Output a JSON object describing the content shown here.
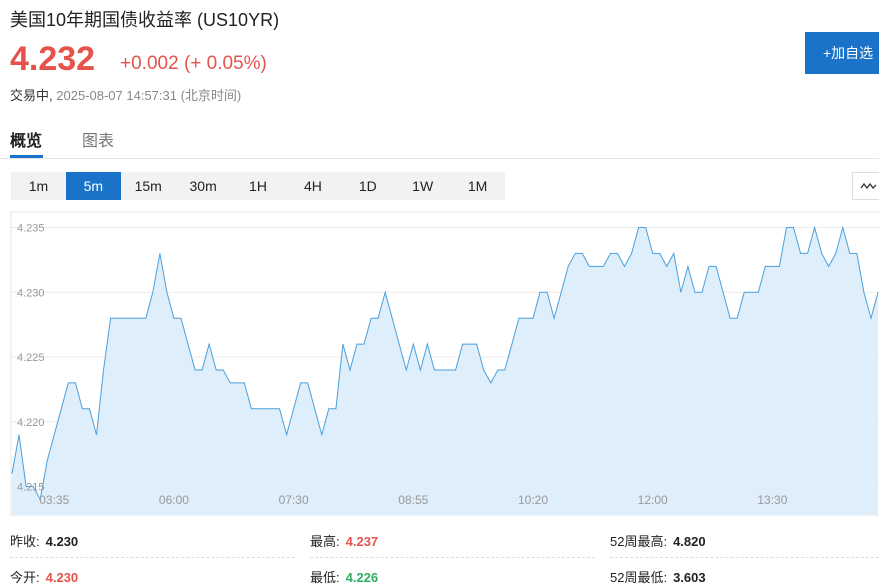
{
  "header": {
    "title": "美国10年期国债收益率",
    "symbol": "(US10YR)",
    "price": "4.232",
    "change": "+0.002",
    "change_pct": "(+ 0.05%)",
    "status": "交易中,",
    "timestamp": "2025-08-07 14:57:31",
    "timezone": "(北京时间)"
  },
  "watch_button": "+加自选",
  "tabs": [
    "概览",
    "图表"
  ],
  "intervals": [
    "1m",
    "5m",
    "15m",
    "30m",
    "1H",
    "4H",
    "1D",
    "1W",
    "1M"
  ],
  "chart_data": {
    "type": "area",
    "color": "#4a9fdc",
    "fill": "#dfeefb",
    "categories": [
      null,
      null,
      null,
      null,
      null,
      null,
      "03:35",
      null,
      null,
      null,
      null,
      null,
      null,
      null,
      null,
      null,
      null,
      null,
      null,
      null,
      null,
      null,
      null,
      "06:00",
      null,
      null,
      null,
      null,
      null,
      null,
      null,
      null,
      null,
      null,
      null,
      null,
      null,
      null,
      null,
      null,
      "07:30",
      null,
      null,
      null,
      null,
      null,
      null,
      null,
      null,
      null,
      null,
      null,
      null,
      null,
      null,
      null,
      null,
      "08:55",
      null,
      null,
      null,
      null,
      null,
      null,
      null,
      null,
      null,
      null,
      null,
      null,
      null,
      null,
      null,
      null,
      "10:20",
      null,
      null,
      null,
      null,
      null,
      null,
      null,
      null,
      null,
      null,
      null,
      null,
      null,
      null,
      null,
      null,
      "12:00",
      null,
      null,
      null,
      null,
      null,
      null,
      null,
      null,
      null,
      null,
      null,
      null,
      null,
      null,
      null,
      null,
      "13:30",
      null,
      null,
      null,
      null,
      null,
      null,
      null,
      null,
      null,
      null,
      null,
      null,
      null,
      null,
      null
    ],
    "values": [
      4.216,
      4.219,
      4.215,
      4.215,
      4.214,
      4.217,
      4.219,
      4.221,
      4.223,
      4.223,
      4.221,
      4.221,
      4.219,
      4.224,
      4.228,
      4.228,
      4.228,
      4.228,
      4.228,
      4.228,
      4.23,
      4.233,
      4.23,
      4.228,
      4.228,
      4.226,
      4.224,
      4.224,
      4.226,
      4.224,
      4.224,
      4.223,
      4.223,
      4.223,
      4.221,
      4.221,
      4.221,
      4.221,
      4.221,
      4.219,
      4.221,
      4.223,
      4.223,
      4.221,
      4.219,
      4.221,
      4.221,
      4.226,
      4.224,
      4.226,
      4.226,
      4.228,
      4.228,
      4.23,
      4.228,
      4.226,
      4.224,
      4.226,
      4.224,
      4.226,
      4.224,
      4.224,
      4.224,
      4.224,
      4.226,
      4.226,
      4.226,
      4.224,
      4.223,
      4.224,
      4.224,
      4.226,
      4.228,
      4.228,
      4.228,
      4.23,
      4.23,
      4.228,
      4.23,
      4.232,
      4.233,
      4.233,
      4.232,
      4.232,
      4.232,
      4.233,
      4.233,
      4.232,
      4.233,
      4.235,
      4.235,
      4.233,
      4.233,
      4.232,
      4.233,
      4.23,
      4.232,
      4.23,
      4.23,
      4.232,
      4.232,
      4.23,
      4.228,
      4.228,
      4.23,
      4.23,
      4.23,
      4.232,
      4.232,
      4.232,
      4.235,
      4.235,
      4.233,
      4.233,
      4.235,
      4.233,
      4.232,
      4.233,
      4.235,
      4.233,
      4.233,
      4.23,
      4.228,
      4.23
    ],
    "ylim": [
      4.2128,
      4.2362
    ],
    "yticks": [
      4.215,
      {
        "value": 4.22,
        "label": "4.220"
      },
      4.225,
      {
        "value": 4.23,
        "label": "4.230"
      },
      4.235
    ],
    "grid": true
  },
  "stats": [
    {
      "label": "昨收:",
      "value": "4.230"
    },
    {
      "label": "最高:",
      "value": "4.237"
    },
    {
      "label": "52周最高:",
      "value": "4.820"
    },
    {
      "label": "今开:",
      "value": "4.230"
    },
    {
      "label": "最低:",
      "value": "4.226"
    },
    {
      "label": "52周最低:",
      "value": "3.603"
    }
  ]
}
